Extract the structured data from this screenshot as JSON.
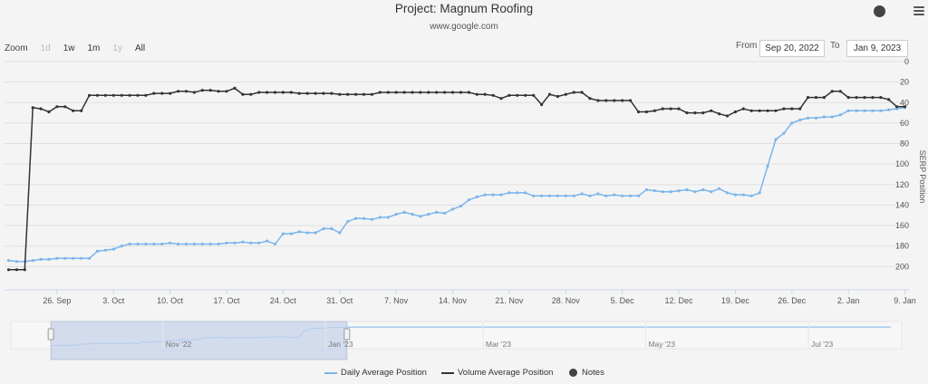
{
  "header": {
    "title": "Project: Magnum Roofing",
    "subtitle": "www.google.com"
  },
  "zoom": {
    "label": "Zoom",
    "buttons": [
      "1d",
      "1w",
      "1m",
      "1y",
      "All"
    ],
    "disabled": [
      "1d",
      "1y"
    ]
  },
  "range": {
    "from_label": "From",
    "from_value": "Sep 20, 2022",
    "to_label": "To",
    "to_value": "Jan 9, 2023"
  },
  "colors": {
    "daily": "#7cb5ec",
    "volume": "#333333",
    "notes": "#444444",
    "navigator_mask": "#c7d3ea"
  },
  "chart_data": {
    "type": "line",
    "ylabel": "SERP Position",
    "y_reversed": true,
    "ylim": [
      0,
      220
    ],
    "y_ticks": [
      0,
      20,
      40,
      60,
      80,
      100,
      120,
      140,
      160,
      180,
      200
    ],
    "x_start": "2022-09-20",
    "x_end": "2023-01-09",
    "x_tick_labels": [
      "26. Sep",
      "3. Oct",
      "10. Oct",
      "17. Oct",
      "24. Oct",
      "31. Oct",
      "7. Nov",
      "14. Nov",
      "21. Nov",
      "28. Nov",
      "5. Dec",
      "12. Dec",
      "19. Dec",
      "26. Dec",
      "2. Jan",
      "9. Jan"
    ],
    "x_tick_dates": [
      "2022-09-26",
      "2022-10-03",
      "2022-10-10",
      "2022-10-17",
      "2022-10-24",
      "2022-10-31",
      "2022-11-07",
      "2022-11-14",
      "2022-11-21",
      "2022-11-28",
      "2022-12-05",
      "2022-12-12",
      "2022-12-19",
      "2022-12-26",
      "2023-01-02",
      "2023-01-09"
    ],
    "legend_position": "bottom",
    "legend": [
      "Daily Average Position",
      "Volume Average Position",
      "Notes"
    ],
    "series": [
      {
        "name": "Daily Average Position",
        "points": [
          [
            "2022-09-20",
            194
          ],
          [
            "2022-09-21",
            195
          ],
          [
            "2022-09-22",
            195
          ],
          [
            "2022-09-23",
            194
          ],
          [
            "2022-09-24",
            193
          ],
          [
            "2022-09-25",
            193
          ],
          [
            "2022-09-26",
            192
          ],
          [
            "2022-09-27",
            192
          ],
          [
            "2022-09-28",
            192
          ],
          [
            "2022-09-29",
            192
          ],
          [
            "2022-09-30",
            192
          ],
          [
            "2022-10-01",
            185
          ],
          [
            "2022-10-02",
            184
          ],
          [
            "2022-10-03",
            183
          ],
          [
            "2022-10-04",
            180
          ],
          [
            "2022-10-05",
            178
          ],
          [
            "2022-10-06",
            178
          ],
          [
            "2022-10-07",
            178
          ],
          [
            "2022-10-08",
            178
          ],
          [
            "2022-10-09",
            178
          ],
          [
            "2022-10-10",
            177
          ],
          [
            "2022-10-11",
            178
          ],
          [
            "2022-10-12",
            178
          ],
          [
            "2022-10-13",
            178
          ],
          [
            "2022-10-14",
            178
          ],
          [
            "2022-10-15",
            178
          ],
          [
            "2022-10-16",
            178
          ],
          [
            "2022-10-17",
            177
          ],
          [
            "2022-10-18",
            177
          ],
          [
            "2022-10-19",
            176
          ],
          [
            "2022-10-20",
            177
          ],
          [
            "2022-10-21",
            177
          ],
          [
            "2022-10-22",
            175
          ],
          [
            "2022-10-23",
            178
          ],
          [
            "2022-10-24",
            168
          ],
          [
            "2022-10-25",
            168
          ],
          [
            "2022-10-26",
            166
          ],
          [
            "2022-10-27",
            167
          ],
          [
            "2022-10-28",
            167
          ],
          [
            "2022-10-29",
            163
          ],
          [
            "2022-10-30",
            163
          ],
          [
            "2022-10-31",
            167
          ],
          [
            "2022-11-01",
            156
          ],
          [
            "2022-11-02",
            153
          ],
          [
            "2022-11-03",
            153
          ],
          [
            "2022-11-04",
            154
          ],
          [
            "2022-11-05",
            152
          ],
          [
            "2022-11-06",
            152
          ],
          [
            "2022-11-07",
            149
          ],
          [
            "2022-11-08",
            147
          ],
          [
            "2022-11-09",
            149
          ],
          [
            "2022-11-10",
            151
          ],
          [
            "2022-11-11",
            149
          ],
          [
            "2022-11-12",
            147
          ],
          [
            "2022-11-13",
            148
          ],
          [
            "2022-11-14",
            144
          ],
          [
            "2022-11-15",
            141
          ],
          [
            "2022-11-16",
            135
          ],
          [
            "2022-11-17",
            132
          ],
          [
            "2022-11-18",
            130
          ],
          [
            "2022-11-19",
            130
          ],
          [
            "2022-11-20",
            130
          ],
          [
            "2022-11-21",
            128
          ],
          [
            "2022-11-22",
            128
          ],
          [
            "2022-11-23",
            128
          ],
          [
            "2022-11-24",
            131
          ],
          [
            "2022-11-25",
            131
          ],
          [
            "2022-11-26",
            131
          ],
          [
            "2022-11-27",
            131
          ],
          [
            "2022-11-28",
            131
          ],
          [
            "2022-11-29",
            131
          ],
          [
            "2022-11-30",
            129
          ],
          [
            "2022-12-01",
            131
          ],
          [
            "2022-12-02",
            129
          ],
          [
            "2022-12-03",
            131
          ],
          [
            "2022-12-04",
            130
          ],
          [
            "2022-12-05",
            131
          ],
          [
            "2022-12-06",
            131
          ],
          [
            "2022-12-07",
            131
          ],
          [
            "2022-12-08",
            125
          ],
          [
            "2022-12-09",
            126
          ],
          [
            "2022-12-10",
            127
          ],
          [
            "2022-12-11",
            127
          ],
          [
            "2022-12-12",
            126
          ],
          [
            "2022-12-13",
            125
          ],
          [
            "2022-12-14",
            127
          ],
          [
            "2022-12-15",
            125
          ],
          [
            "2022-12-16",
            127
          ],
          [
            "2022-12-17",
            124
          ],
          [
            "2022-12-18",
            128
          ],
          [
            "2022-12-19",
            130
          ],
          [
            "2022-12-20",
            130
          ],
          [
            "2022-12-21",
            131
          ],
          [
            "2022-12-22",
            128
          ],
          [
            "2022-12-23",
            102
          ],
          [
            "2022-12-24",
            76
          ],
          [
            "2022-12-25",
            70
          ],
          [
            "2022-12-26",
            60
          ],
          [
            "2022-12-27",
            57
          ],
          [
            "2022-12-28",
            55
          ],
          [
            "2022-12-29",
            55
          ],
          [
            "2022-12-30",
            54
          ],
          [
            "2022-12-31",
            54
          ],
          [
            "2023-01-01",
            52
          ],
          [
            "2023-01-02",
            48
          ],
          [
            "2023-01-03",
            48
          ],
          [
            "2023-01-04",
            48
          ],
          [
            "2023-01-05",
            48
          ],
          [
            "2023-01-06",
            48
          ],
          [
            "2023-01-07",
            47
          ],
          [
            "2023-01-08",
            46
          ],
          [
            "2023-01-09",
            45
          ],
          [
            "2023-01-10",
            45
          ],
          [
            "2023-01-11",
            45
          ],
          [
            "2023-01-12",
            45
          ]
        ]
      },
      {
        "name": "Volume Average Position",
        "points": [
          [
            "2022-09-20",
            203
          ],
          [
            "2022-09-21",
            203
          ],
          [
            "2022-09-22",
            203
          ],
          [
            "2022-09-23",
            45
          ],
          [
            "2022-09-24",
            46
          ],
          [
            "2022-09-25",
            49
          ],
          [
            "2022-09-26",
            44
          ],
          [
            "2022-09-27",
            44
          ],
          [
            "2022-09-28",
            48
          ],
          [
            "2022-09-29",
            48
          ],
          [
            "2022-09-30",
            33
          ],
          [
            "2022-10-01",
            33
          ],
          [
            "2022-10-02",
            33
          ],
          [
            "2022-10-03",
            33
          ],
          [
            "2022-10-04",
            33
          ],
          [
            "2022-10-05",
            33
          ],
          [
            "2022-10-06",
            33
          ],
          [
            "2022-10-07",
            33
          ],
          [
            "2022-10-08",
            31
          ],
          [
            "2022-10-09",
            31
          ],
          [
            "2022-10-10",
            31
          ],
          [
            "2022-10-11",
            29
          ],
          [
            "2022-10-12",
            29
          ],
          [
            "2022-10-13",
            30
          ],
          [
            "2022-10-14",
            28
          ],
          [
            "2022-10-15",
            28
          ],
          [
            "2022-10-16",
            29
          ],
          [
            "2022-10-17",
            29
          ],
          [
            "2022-10-18",
            26
          ],
          [
            "2022-10-19",
            32
          ],
          [
            "2022-10-20",
            32
          ],
          [
            "2022-10-21",
            30
          ],
          [
            "2022-10-22",
            30
          ],
          [
            "2022-10-23",
            30
          ],
          [
            "2022-10-24",
            30
          ],
          [
            "2022-10-25",
            30
          ],
          [
            "2022-10-26",
            31
          ],
          [
            "2022-10-27",
            31
          ],
          [
            "2022-10-28",
            31
          ],
          [
            "2022-10-29",
            31
          ],
          [
            "2022-10-30",
            31
          ],
          [
            "2022-10-31",
            32
          ],
          [
            "2022-11-01",
            32
          ],
          [
            "2022-11-02",
            32
          ],
          [
            "2022-11-03",
            32
          ],
          [
            "2022-11-04",
            32
          ],
          [
            "2022-11-05",
            30
          ],
          [
            "2022-11-06",
            30
          ],
          [
            "2022-11-07",
            30
          ],
          [
            "2022-11-08",
            30
          ],
          [
            "2022-11-09",
            30
          ],
          [
            "2022-11-10",
            30
          ],
          [
            "2022-11-11",
            30
          ],
          [
            "2022-11-12",
            30
          ],
          [
            "2022-11-13",
            30
          ],
          [
            "2022-11-14",
            30
          ],
          [
            "2022-11-15",
            30
          ],
          [
            "2022-11-16",
            30
          ],
          [
            "2022-11-17",
            32
          ],
          [
            "2022-11-18",
            32
          ],
          [
            "2022-11-19",
            33
          ],
          [
            "2022-11-20",
            36
          ],
          [
            "2022-11-21",
            33
          ],
          [
            "2022-11-22",
            33
          ],
          [
            "2022-11-23",
            33
          ],
          [
            "2022-11-24",
            33
          ],
          [
            "2022-11-25",
            42
          ],
          [
            "2022-11-26",
            32
          ],
          [
            "2022-11-27",
            34
          ],
          [
            "2022-11-28",
            32
          ],
          [
            "2022-11-29",
            30
          ],
          [
            "2022-11-30",
            30
          ],
          [
            "2022-12-01",
            36
          ],
          [
            "2022-12-02",
            38
          ],
          [
            "2022-12-03",
            38
          ],
          [
            "2022-12-04",
            38
          ],
          [
            "2022-12-05",
            38
          ],
          [
            "2022-12-06",
            38
          ],
          [
            "2022-12-07",
            49
          ],
          [
            "2022-12-08",
            49
          ],
          [
            "2022-12-09",
            48
          ],
          [
            "2022-12-10",
            46
          ],
          [
            "2022-12-11",
            46
          ],
          [
            "2022-12-12",
            46
          ],
          [
            "2022-12-13",
            50
          ],
          [
            "2022-12-14",
            50
          ],
          [
            "2022-12-15",
            50
          ],
          [
            "2022-12-16",
            48
          ],
          [
            "2022-12-17",
            51
          ],
          [
            "2022-12-18",
            53
          ],
          [
            "2022-12-19",
            49
          ],
          [
            "2022-12-20",
            46
          ],
          [
            "2022-12-21",
            48
          ],
          [
            "2022-12-22",
            48
          ],
          [
            "2022-12-23",
            48
          ],
          [
            "2022-12-24",
            48
          ],
          [
            "2022-12-25",
            46
          ],
          [
            "2022-12-26",
            46
          ],
          [
            "2022-12-27",
            46
          ],
          [
            "2022-12-28",
            35
          ],
          [
            "2022-12-29",
            35
          ],
          [
            "2022-12-30",
            35
          ],
          [
            "2022-12-31",
            29
          ],
          [
            "2023-01-01",
            29
          ],
          [
            "2023-01-02",
            35
          ],
          [
            "2023-01-03",
            35
          ],
          [
            "2023-01-04",
            35
          ],
          [
            "2023-01-05",
            35
          ],
          [
            "2023-01-06",
            35
          ],
          [
            "2023-01-07",
            37
          ],
          [
            "2023-01-08",
            44
          ],
          [
            "2023-01-09",
            44
          ],
          [
            "2023-01-10",
            44
          ],
          [
            "2023-01-11",
            41
          ],
          [
            "2023-01-12",
            41
          ],
          [
            "2023-01-13",
            43
          ]
        ]
      }
    ],
    "navigator": {
      "x_tick_labels": [
        "Nov '22",
        "Jan '23",
        "Mar '23",
        "May '23",
        "Jul '23"
      ]
    }
  }
}
